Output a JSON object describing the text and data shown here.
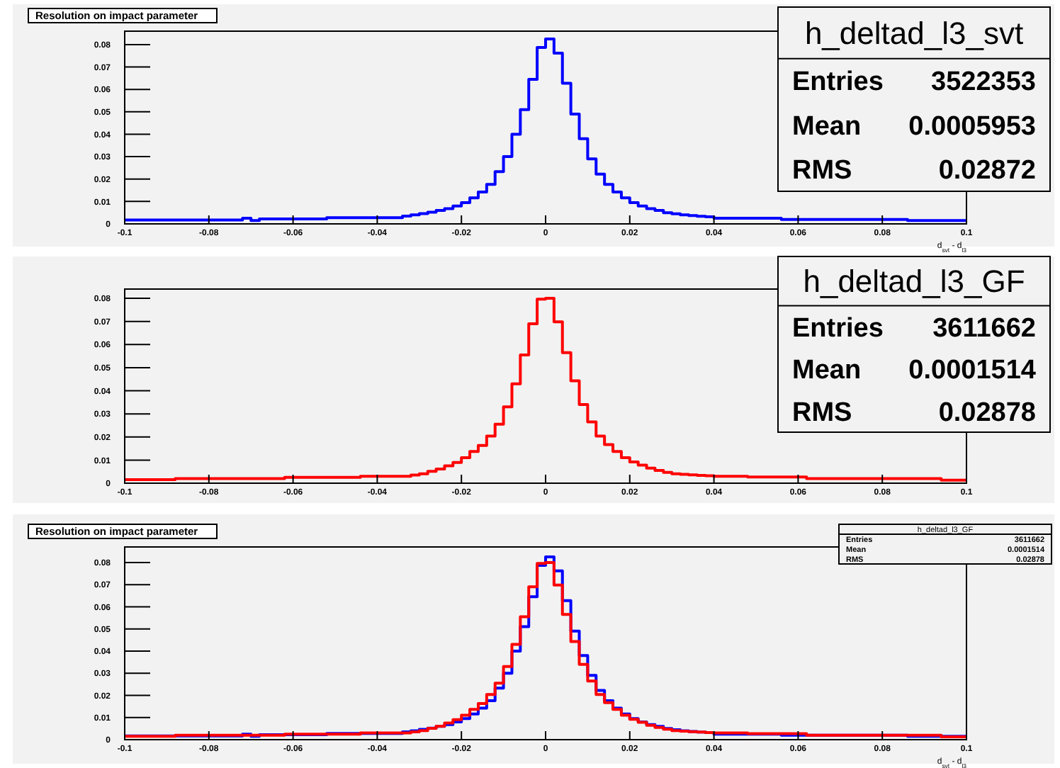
{
  "chart_data": [
    {
      "type": "histogram",
      "title": "Resolution on impact parameter",
      "xlabel": "d$_{svt}$ - d$_{l3}$",
      "bins": [
        -0.1,
        -0.098,
        -0.096,
        -0.094,
        -0.092,
        -0.09,
        -0.088,
        -0.086,
        -0.084,
        -0.082,
        -0.08,
        -0.078,
        -0.076,
        -0.074,
        -0.072,
        -0.07,
        -0.068,
        -0.066,
        -0.064,
        -0.062,
        -0.06,
        -0.058,
        -0.056,
        -0.054,
        -0.052,
        -0.05,
        -0.048,
        -0.046,
        -0.044,
        -0.042,
        -0.04,
        -0.038,
        -0.036,
        -0.034,
        -0.032,
        -0.03,
        -0.028,
        -0.026,
        -0.024,
        -0.022,
        -0.02,
        -0.018,
        -0.016,
        -0.014,
        -0.012,
        -0.01,
        -0.008,
        -0.006,
        -0.004,
        -0.002,
        0,
        0.002,
        0.004,
        0.006,
        0.008,
        0.01,
        0.012,
        0.014,
        0.016,
        0.018,
        0.02,
        0.022,
        0.024,
        0.026,
        0.028,
        0.03,
        0.032,
        0.034,
        0.036,
        0.038,
        0.04,
        0.042,
        0.044,
        0.046,
        0.048,
        0.05,
        0.052,
        0.054,
        0.056,
        0.058,
        0.06,
        0.062,
        0.064,
        0.066,
        0.068,
        0.07,
        0.072,
        0.074,
        0.076,
        0.078,
        0.08,
        0.082,
        0.084,
        0.086,
        0.088,
        0.09,
        0.092,
        0.094,
        0.096,
        0.098,
        0.1
      ],
      "series": [
        {
          "color": "#0000ff",
          "values": [
            0.0017,
            0.0017,
            0.0017,
            0.0017,
            0.0017,
            0.0017,
            0.0017,
            0.0017,
            0.0017,
            0.0017,
            0.0017,
            0.0017,
            0.0017,
            0.0017,
            0.0025,
            0.0015,
            0.0022,
            0.0022,
            0.0022,
            0.0022,
            0.0022,
            0.0022,
            0.0022,
            0.0022,
            0.0028,
            0.0028,
            0.0028,
            0.0028,
            0.0028,
            0.0028,
            0.0028,
            0.0028,
            0.0028,
            0.0035,
            0.004,
            0.0046,
            0.0052,
            0.006,
            0.0068,
            0.008,
            0.0095,
            0.0116,
            0.0142,
            0.0176,
            0.0233,
            0.03,
            0.04,
            0.051,
            0.0645,
            0.0787,
            0.0825,
            0.0762,
            0.0628,
            0.049,
            0.038,
            0.029,
            0.0222,
            0.0176,
            0.0142,
            0.0116,
            0.0095,
            0.008,
            0.0068,
            0.006,
            0.005,
            0.0045,
            0.004,
            0.0037,
            0.0034,
            0.0032,
            0.0025,
            0.0025,
            0.0025,
            0.0025,
            0.0025,
            0.0025,
            0.0025,
            0.0025,
            0.002,
            0.002,
            0.002,
            0.002,
            0.002,
            0.002,
            0.002,
            0.002,
            0.002,
            0.002,
            0.002,
            0.002,
            0.002,
            0.002,
            0.002,
            0.0015,
            0.0015,
            0.0015,
            0.0015,
            0.0015,
            0.0015,
            0.0015
          ]
        }
      ],
      "xlim": [
        -0.1,
        0.1
      ],
      "xticks": [
        -0.1,
        -0.08,
        -0.06,
        -0.04,
        -0.02,
        0,
        0.02,
        0.04,
        0.06,
        0.08,
        0.1
      ],
      "ylim": [
        0,
        0.086
      ],
      "yticks": [
        0,
        0.01,
        0.02,
        0.03,
        0.04,
        0.05,
        0.06,
        0.07,
        0.08
      ],
      "annotations": [
        "h_deltad_l3_svt",
        "Entries",
        "3522353",
        "Mean",
        "0.0005953",
        "RMS",
        "0.02872"
      ]
    },
    {
      "type": "histogram",
      "bins": [
        -0.1,
        -0.098,
        -0.096,
        -0.094,
        -0.092,
        -0.09,
        -0.088,
        -0.086,
        -0.084,
        -0.082,
        -0.08,
        -0.078,
        -0.076,
        -0.074,
        -0.072,
        -0.07,
        -0.068,
        -0.066,
        -0.064,
        -0.062,
        -0.06,
        -0.058,
        -0.056,
        -0.054,
        -0.052,
        -0.05,
        -0.048,
        -0.046,
        -0.044,
        -0.042,
        -0.04,
        -0.038,
        -0.036,
        -0.034,
        -0.032,
        -0.03,
        -0.028,
        -0.026,
        -0.024,
        -0.022,
        -0.02,
        -0.018,
        -0.016,
        -0.014,
        -0.012,
        -0.01,
        -0.008,
        -0.006,
        -0.004,
        -0.002,
        0,
        0.002,
        0.004,
        0.006,
        0.008,
        0.01,
        0.012,
        0.014,
        0.016,
        0.018,
        0.02,
        0.022,
        0.024,
        0.026,
        0.028,
        0.03,
        0.032,
        0.034,
        0.036,
        0.038,
        0.04,
        0.042,
        0.044,
        0.046,
        0.048,
        0.05,
        0.052,
        0.054,
        0.056,
        0.058,
        0.06,
        0.062,
        0.064,
        0.066,
        0.068,
        0.07,
        0.072,
        0.074,
        0.076,
        0.078,
        0.08,
        0.082,
        0.084,
        0.086,
        0.088,
        0.09,
        0.092,
        0.094,
        0.096,
        0.098,
        0.1
      ],
      "series": [
        {
          "color": "#ff0000",
          "values": [
            0.0015,
            0.0015,
            0.0015,
            0.0015,
            0.0015,
            0.0015,
            0.002,
            0.002,
            0.002,
            0.002,
            0.002,
            0.002,
            0.002,
            0.002,
            0.002,
            0.002,
            0.002,
            0.002,
            0.002,
            0.0025,
            0.0025,
            0.0025,
            0.0025,
            0.0025,
            0.0025,
            0.0025,
            0.0025,
            0.0025,
            0.003,
            0.003,
            0.003,
            0.003,
            0.003,
            0.003,
            0.0035,
            0.0041,
            0.0051,
            0.0061,
            0.0075,
            0.009,
            0.011,
            0.0137,
            0.0163,
            0.0204,
            0.0255,
            0.033,
            0.043,
            0.0555,
            0.069,
            0.0796,
            0.08,
            0.0698,
            0.0565,
            0.0443,
            0.034,
            0.0265,
            0.0204,
            0.0167,
            0.0137,
            0.011,
            0.0092,
            0.0078,
            0.0065,
            0.0055,
            0.0047,
            0.0041,
            0.0038,
            0.0036,
            0.0034,
            0.0032,
            0.003,
            0.003,
            0.003,
            0.003,
            0.0027,
            0.0027,
            0.0027,
            0.0027,
            0.0027,
            0.0027,
            0.0027,
            0.002,
            0.002,
            0.002,
            0.002,
            0.002,
            0.002,
            0.002,
            0.002,
            0.002,
            0.002,
            0.002,
            0.002,
            0.002,
            0.002,
            0.002,
            0.002,
            0.0013,
            0.0013,
            0.0013
          ]
        }
      ],
      "xlim": [
        -0.1,
        0.1
      ],
      "xticks": [
        -0.1,
        -0.08,
        -0.06,
        -0.04,
        -0.02,
        0,
        0.02,
        0.04,
        0.06,
        0.08,
        0.1
      ],
      "ylim": [
        0,
        0.084
      ],
      "yticks": [
        0,
        0.01,
        0.02,
        0.03,
        0.04,
        0.05,
        0.06,
        0.07,
        0.08
      ],
      "annotations": [
        "h_deltad_l3_GF",
        "Entries",
        "3611662",
        "Mean",
        "0.0001514",
        "RMS",
        "0.02878"
      ]
    },
    {
      "type": "histogram",
      "title": "Resolution on impact parameter",
      "xlabel": "d$_{svt}$ - d$_{l3}$",
      "bins": [
        -0.1,
        -0.098,
        -0.096,
        -0.094,
        -0.092,
        -0.09,
        -0.088,
        -0.086,
        -0.084,
        -0.082,
        -0.08,
        -0.078,
        -0.076,
        -0.074,
        -0.072,
        -0.07,
        -0.068,
        -0.066,
        -0.064,
        -0.062,
        -0.06,
        -0.058,
        -0.056,
        -0.054,
        -0.052,
        -0.05,
        -0.048,
        -0.046,
        -0.044,
        -0.042,
        -0.04,
        -0.038,
        -0.036,
        -0.034,
        -0.032,
        -0.03,
        -0.028,
        -0.026,
        -0.024,
        -0.022,
        -0.02,
        -0.018,
        -0.016,
        -0.014,
        -0.012,
        -0.01,
        -0.008,
        -0.006,
        -0.004,
        -0.002,
        0,
        0.002,
        0.004,
        0.006,
        0.008,
        0.01,
        0.012,
        0.014,
        0.016,
        0.018,
        0.02,
        0.022,
        0.024,
        0.026,
        0.028,
        0.03,
        0.032,
        0.034,
        0.036,
        0.038,
        0.04,
        0.042,
        0.044,
        0.046,
        0.048,
        0.05,
        0.052,
        0.054,
        0.056,
        0.058,
        0.06,
        0.062,
        0.064,
        0.066,
        0.068,
        0.07,
        0.072,
        0.074,
        0.076,
        0.078,
        0.08,
        0.082,
        0.084,
        0.086,
        0.088,
        0.09,
        0.092,
        0.094,
        0.096,
        0.098,
        0.1
      ],
      "series": [
        {
          "color": "#0000ff",
          "values": [
            0.0017,
            0.0017,
            0.0017,
            0.0017,
            0.0017,
            0.0017,
            0.0017,
            0.0017,
            0.0017,
            0.0017,
            0.0017,
            0.0017,
            0.0017,
            0.0017,
            0.0025,
            0.0015,
            0.0022,
            0.0022,
            0.0022,
            0.0022,
            0.0022,
            0.0022,
            0.0022,
            0.0022,
            0.0028,
            0.0028,
            0.0028,
            0.0028,
            0.0028,
            0.0028,
            0.0028,
            0.0028,
            0.0028,
            0.0035,
            0.004,
            0.0046,
            0.0052,
            0.006,
            0.0068,
            0.008,
            0.0095,
            0.0116,
            0.0142,
            0.0176,
            0.0233,
            0.03,
            0.04,
            0.051,
            0.0645,
            0.0787,
            0.0825,
            0.0762,
            0.0628,
            0.049,
            0.038,
            0.029,
            0.0222,
            0.0176,
            0.0142,
            0.0116,
            0.0095,
            0.008,
            0.0068,
            0.006,
            0.005,
            0.0045,
            0.004,
            0.0037,
            0.0034,
            0.0032,
            0.0025,
            0.0025,
            0.0025,
            0.0025,
            0.0025,
            0.0025,
            0.0025,
            0.0025,
            0.002,
            0.002,
            0.002,
            0.002,
            0.002,
            0.002,
            0.002,
            0.002,
            0.002,
            0.002,
            0.002,
            0.002,
            0.002,
            0.002,
            0.002,
            0.0015,
            0.0015,
            0.0015,
            0.0015,
            0.0015,
            0.0015,
            0.0015
          ]
        },
        {
          "color": "#ff0000",
          "values": [
            0.0015,
            0.0015,
            0.0015,
            0.0015,
            0.0015,
            0.0015,
            0.002,
            0.002,
            0.002,
            0.002,
            0.002,
            0.002,
            0.002,
            0.002,
            0.002,
            0.002,
            0.002,
            0.002,
            0.002,
            0.0025,
            0.0025,
            0.0025,
            0.0025,
            0.0025,
            0.0025,
            0.0025,
            0.0025,
            0.0025,
            0.003,
            0.003,
            0.003,
            0.003,
            0.003,
            0.003,
            0.0035,
            0.0041,
            0.0051,
            0.0061,
            0.0075,
            0.009,
            0.011,
            0.0137,
            0.0163,
            0.0204,
            0.0255,
            0.033,
            0.043,
            0.0555,
            0.069,
            0.0796,
            0.08,
            0.0698,
            0.0565,
            0.0443,
            0.034,
            0.0265,
            0.0204,
            0.0167,
            0.0137,
            0.011,
            0.0092,
            0.0078,
            0.0065,
            0.0055,
            0.0047,
            0.0041,
            0.0038,
            0.0036,
            0.0034,
            0.0032,
            0.003,
            0.003,
            0.003,
            0.003,
            0.0027,
            0.0027,
            0.0027,
            0.0027,
            0.0027,
            0.0027,
            0.0027,
            0.002,
            0.002,
            0.002,
            0.002,
            0.002,
            0.002,
            0.002,
            0.002,
            0.002,
            0.002,
            0.002,
            0.002,
            0.002,
            0.002,
            0.002,
            0.002,
            0.0013,
            0.0013,
            0.0013
          ]
        }
      ],
      "xlim": [
        -0.1,
        0.1
      ],
      "xticks": [
        -0.1,
        -0.08,
        -0.06,
        -0.04,
        -0.02,
        0,
        0.02,
        0.04,
        0.06,
        0.08,
        0.1
      ],
      "ylim": [
        0,
        0.087
      ],
      "yticks": [
        0,
        0.01,
        0.02,
        0.03,
        0.04,
        0.05,
        0.06,
        0.07,
        0.08
      ],
      "annotations": [
        "h_deltad_l3_GF",
        "Entries",
        "3611662",
        "Mean",
        "0.0001514",
        "RMS",
        "0.02878"
      ]
    }
  ]
}
